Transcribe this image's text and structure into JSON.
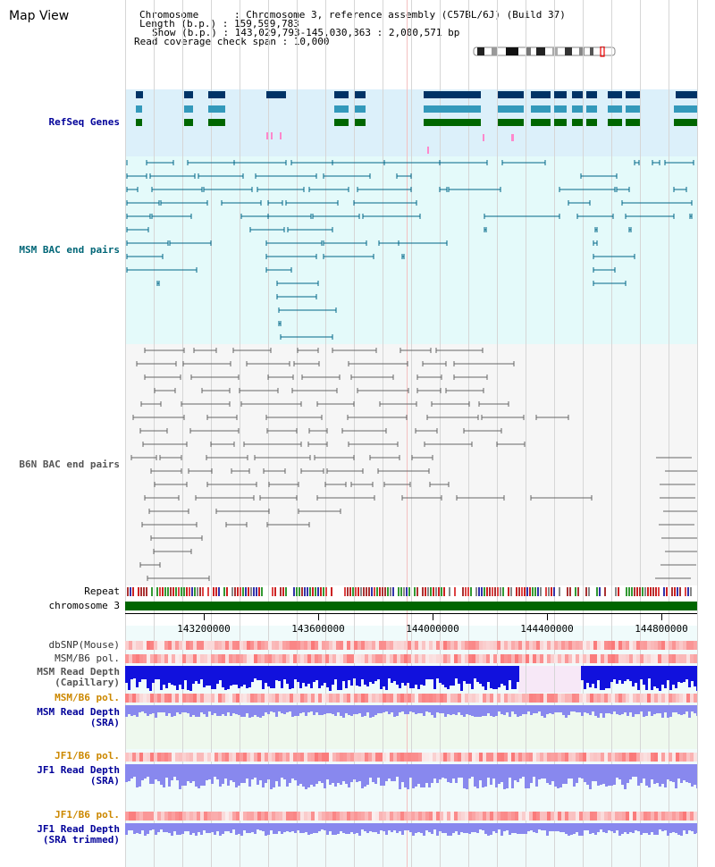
{
  "header": {
    "view_title": "Map View",
    "chromosome": "Chromosome      : Chromosome 3, reference assembly (C57BL/6J) (Build 37)",
    "length": "Length (b.p.) : 159,599,783",
    "show": "Show (b.p.) : 143,029,793-145,030,363 : 2,000,571 bp",
    "coverage_span": "Read coverage check span : 10,000"
  },
  "tracks": {
    "refseq": "RefSeq Genes",
    "msm_bac": "MSM BAC end pairs",
    "b6n_bac": "B6N BAC end pairs",
    "repeat": "Repeat",
    "chromosome": "chromosome 3",
    "dbsnp": "dbSNP(Mouse)",
    "msm_b6_pol_1": "MSM/B6 pol.",
    "msm_read_depth_cap_1": "MSM Read Depth",
    "msm_read_depth_cap_2": "(Capillary)",
    "msm_b6_pol_2": "MSM/B6 pol.",
    "msm_read_depth_sra_1": "MSM Read Depth",
    "msm_read_depth_sra_2": "(SRA)",
    "jf1_b6_pol_1": "JF1/B6 pol.",
    "jf1_read_depth_1": "JF1 Read Depth",
    "jf1_read_depth_2": "(SRA)",
    "jf1_b6_pol_2": "JF1/B6 pol.",
    "jf1_trim_1": "JF1 Read Depth",
    "jf1_trim_2": "(SRA trimmed)"
  },
  "axis": {
    "ticks": [
      "143200000",
      "143600000",
      "144000000",
      "144400000",
      "144800000"
    ]
  },
  "colors": {
    "refseq_bg": "#dcf0fa",
    "msm_bg": "#e4fafa",
    "b6n_bg": "#f5f5f5",
    "gene_dark": "#003366",
    "gene_mid": "#3399bb",
    "gene_green": "#006600",
    "msm_line": "#006688",
    "b6n_line": "#666666",
    "chrom_bar": "#006600",
    "label_blue": "#000099",
    "label_teal": "#006677",
    "label_orange": "#cc8800",
    "label_gray": "#555555",
    "depth_blue": "#1111dd",
    "depth_light": "#8888ee"
  }
}
